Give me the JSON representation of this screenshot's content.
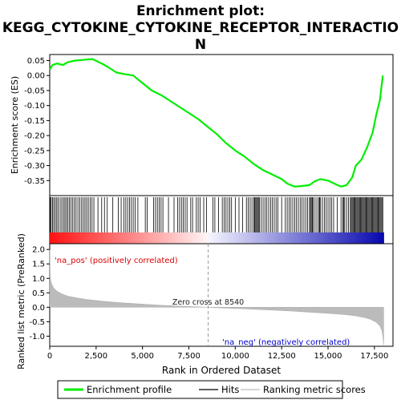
{
  "title_line1": "Enrichment plot:",
  "title_line2": "KEGG_CYTOKINE_CYTOKINE_RECEPTOR_INTERACTIO",
  "title_line3": "N",
  "chart_data": [
    {
      "type": "line",
      "ylabel": "Enrichment score (ES)",
      "ylim": [
        -0.4,
        0.07
      ],
      "yticks": [
        0.05,
        0.0,
        -0.05,
        -0.1,
        -0.15,
        -0.2,
        -0.25,
        -0.3,
        -0.35
      ],
      "ytick_labels": [
        "0.05",
        "0.00",
        "-0.05",
        "-0.10",
        "-0.15",
        "-0.20",
        "-0.25",
        "-0.30",
        "-0.35"
      ],
      "xlim": [
        0,
        18500
      ],
      "grid": false,
      "color": "#00ee00",
      "x": [
        0,
        150,
        400,
        700,
        1000,
        1400,
        1800,
        2300,
        2800,
        3100,
        3600,
        4000,
        4500,
        5000,
        5500,
        6000,
        6500,
        7000,
        7500,
        8000,
        8500,
        9000,
        9500,
        10000,
        10500,
        11000,
        11500,
        12000,
        12500,
        12800,
        13200,
        13600,
        14000,
        14300,
        14600,
        15000,
        15400,
        15700,
        16000,
        16300,
        16500,
        16800,
        17100,
        17400,
        17600,
        17800,
        17950
      ],
      "y": [
        0.02,
        0.035,
        0.04,
        0.035,
        0.045,
        0.05,
        0.052,
        0.055,
        0.04,
        0.03,
        0.01,
        0.005,
        0.0,
        -0.025,
        -0.05,
        -0.065,
        -0.085,
        -0.105,
        -0.125,
        -0.145,
        -0.17,
        -0.195,
        -0.225,
        -0.25,
        -0.27,
        -0.295,
        -0.315,
        -0.33,
        -0.345,
        -0.36,
        -0.37,
        -0.368,
        -0.365,
        -0.352,
        -0.345,
        -0.35,
        -0.362,
        -0.37,
        -0.365,
        -0.34,
        -0.3,
        -0.28,
        -0.24,
        -0.19,
        -0.13,
        -0.08,
        0.0
      ]
    },
    {
      "type": "scatter",
      "name": "Hits",
      "x": [
        30,
        80,
        150,
        220,
        300,
        380,
        460,
        560,
        650,
        740,
        820,
        900,
        980,
        1060,
        1150,
        1240,
        1330,
        1420,
        1520,
        1620,
        1720,
        1810,
        1900,
        1990,
        2080,
        2180,
        2280,
        2380,
        2600,
        2800,
        2950,
        3100,
        3400,
        3700,
        3850,
        4000,
        4100,
        4200,
        4300,
        4400,
        4500,
        4600,
        4750,
        5150,
        5250,
        5600,
        5700,
        5800,
        5900,
        6000,
        6100,
        6400,
        6700,
        6900,
        7000,
        7100,
        7200,
        7300,
        7400,
        7600,
        7700,
        7900,
        8000,
        8100,
        8300,
        8450,
        8800,
        8900,
        9100,
        9300,
        9400,
        9500,
        9600,
        9700,
        9800,
        10000,
        10200,
        10400,
        10600,
        10700,
        10800,
        10900,
        11000,
        11050,
        11100,
        11150,
        11200,
        11250,
        11300,
        11400,
        11500,
        11600,
        11700,
        11800,
        11900,
        12000,
        12100,
        12200,
        12300,
        12500,
        12700,
        12800,
        12900,
        13000,
        13100,
        13200,
        13300,
        13400,
        13500,
        13600,
        13700,
        13800,
        13900,
        14000,
        14050,
        14100,
        14150,
        14200,
        14300,
        14400,
        14500,
        14550,
        14600,
        14700,
        14800,
        14900,
        15000,
        15100,
        15200,
        15300,
        15500,
        15700,
        15800,
        15850,
        15900,
        16000,
        16100,
        16200,
        16250,
        16300,
        16350,
        16400,
        16450,
        16500,
        16550,
        16600,
        16650,
        16700,
        16750,
        16800,
        16850,
        16900,
        16950,
        17000,
        17050,
        17100,
        17150,
        17200,
        17250,
        17300,
        17350,
        17400,
        17450,
        17500,
        17550,
        17600,
        17650,
        17700,
        17750,
        17800,
        17850,
        17900,
        17950
      ]
    },
    {
      "type": "area",
      "name": "Ranking metric scores",
      "ylabel": "Ranked list metric (PreRanked)",
      "xlabel": "Rank in Ordered Dataset",
      "ylim": [
        -1.35,
        2.2
      ],
      "yticks": [
        2.0,
        1.5,
        1.0,
        0.5,
        0.0,
        -0.5,
        -1.0
      ],
      "ytick_labels": [
        "2.0",
        "1.5",
        "1.0",
        "0.5",
        "0.0",
        "-0.5",
        "-1.0"
      ],
      "xlim": [
        0,
        18500
      ],
      "xticks": [
        0,
        2500,
        5000,
        7500,
        10000,
        12500,
        15000,
        17500
      ],
      "xtick_labels": [
        "0",
        "2,500",
        "5,000",
        "7,500",
        "10,000",
        "12,500",
        "15,000",
        "17,500"
      ],
      "x": [
        0,
        30,
        100,
        200,
        400,
        700,
        1000,
        1500,
        2000,
        3000,
        4000,
        5000,
        6000,
        7000,
        8000,
        8540,
        9000,
        10000,
        11000,
        12000,
        13000,
        14000,
        15000,
        16000,
        16500,
        17000,
        17300,
        17600,
        17800,
        17900,
        17950,
        17999
      ],
      "y": [
        2.0,
        1.0,
        0.82,
        0.68,
        0.55,
        0.45,
        0.38,
        0.32,
        0.27,
        0.2,
        0.15,
        0.11,
        0.07,
        0.04,
        0.015,
        0.0,
        -0.015,
        -0.04,
        -0.07,
        -0.1,
        -0.13,
        -0.17,
        -0.21,
        -0.26,
        -0.3,
        -0.36,
        -0.42,
        -0.52,
        -0.65,
        -0.8,
        -1.0,
        -1.3
      ],
      "annotations": {
        "pos": "'na_pos' (positively correlated)",
        "neg": "'na_neg' (negatively correlated)",
        "zero_cross": "Zero cross at 8540",
        "zero_cross_rank": 8540
      }
    }
  ],
  "legend": {
    "placement": "bottom",
    "items": [
      {
        "label": "Enrichment profile",
        "color": "#00ee00"
      },
      {
        "label": "Hits",
        "color": "#000000"
      },
      {
        "label": "Ranking metric scores",
        "color": "#bbbbbb"
      }
    ]
  }
}
